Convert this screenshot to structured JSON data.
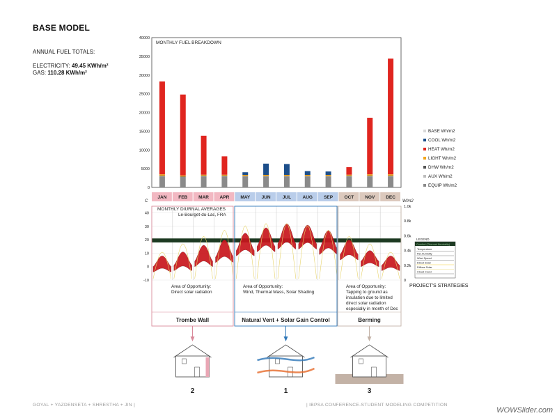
{
  "header": {
    "title": "BASE MODEL",
    "annual_label": "ANNUAL FUEL TOTALS:",
    "electricity_label": "ELECTRICITY:",
    "electricity_value": "49.45 KWh/m²",
    "gas_label": "GAS:",
    "gas_value": "110.28 KWh/m²"
  },
  "chart_data": [
    {
      "type": "bar",
      "title": "MONTHLY FUEL BREAKDOWN",
      "categories": [
        "JAN",
        "FEB",
        "MAR",
        "APR",
        "MAY",
        "JUN",
        "JUL",
        "AUG",
        "SEP",
        "OCT",
        "NOV",
        "DEC"
      ],
      "ylim": [
        0,
        40000
      ],
      "yticks": [
        0,
        5000,
        10000,
        15000,
        20000,
        25000,
        30000,
        35000,
        40000
      ],
      "stacked": true,
      "series": [
        {
          "name": "EQUIP Wh/m2",
          "color": "#8a8a8a",
          "values": [
            2800,
            2600,
            2800,
            2800,
            2800,
            2800,
            2800,
            2800,
            2800,
            2800,
            2800,
            2800
          ]
        },
        {
          "name": "AUX Wh/m2",
          "color": "#bdbdbd",
          "values": [
            100,
            100,
            100,
            100,
            100,
            100,
            100,
            100,
            100,
            100,
            100,
            100
          ]
        },
        {
          "name": "DHW Wh/m2",
          "color": "#555555",
          "values": [
            200,
            200,
            200,
            200,
            150,
            150,
            150,
            150,
            150,
            200,
            200,
            200
          ]
        },
        {
          "name": "LIGHT Wh/m2",
          "color": "#f2a51a",
          "values": [
            400,
            300,
            300,
            300,
            300,
            300,
            300,
            300,
            300,
            300,
            400,
            400
          ]
        },
        {
          "name": "COOL Wh/m2",
          "color": "#1c4e8a",
          "values": [
            0,
            0,
            0,
            0,
            700,
            3000,
            2900,
            1000,
            900,
            0,
            0,
            0
          ]
        },
        {
          "name": "HEAT Wh/m2",
          "color": "#e0251f",
          "values": [
            24800,
            21600,
            10400,
            4900,
            0,
            0,
            0,
            0,
            0,
            2000,
            15100,
            30900
          ]
        },
        {
          "name": "BASE Wh/m2",
          "color": "#d9d9d9",
          "values": [
            0,
            0,
            0,
            0,
            0,
            0,
            0,
            0,
            0,
            0,
            0,
            0
          ]
        }
      ],
      "legend_order": [
        "BASE Wh/m2",
        "COOL Wh/m2",
        "HEAT Wh/m2",
        "LIGHT Wh/m2",
        "DHW Wh/m2",
        "AUX Wh/m2",
        "EQUIP Wh/m2"
      ]
    },
    {
      "type": "area",
      "title": "MONTHLY DIURNAL AVERAGES",
      "subtitle": "Le-Bourget-du-Lac, FRA",
      "ylabel": "C",
      "ylabel_right": "W/m2",
      "ylim": [
        -10,
        45
      ],
      "yticks": [
        -10,
        -5,
        0,
        5,
        10,
        15,
        20,
        25,
        30,
        35,
        40
      ],
      "right_ticks": [
        "0",
        "0.2k",
        "0.4k",
        "0.6k",
        "0.8k",
        "1.0k"
      ],
      "months": [
        "JAN",
        "FEB",
        "MAR",
        "APR",
        "MAY",
        "JUN",
        "JUL",
        "AUG",
        "SEP",
        "OCT",
        "NOV",
        "DEC"
      ],
      "month_colors": [
        "#f2b8c2",
        "#f2b8c2",
        "#f2b8c2",
        "#f2b8c2",
        "#b9cdea",
        "#b9cdea",
        "#b9cdea",
        "#b9cdea",
        "#b9cdea",
        "#dcc9bd",
        "#dcc9bd",
        "#dcc9bd"
      ],
      "temp_min": [
        -2,
        -1,
        2,
        5,
        10,
        13,
        15,
        15,
        11,
        7,
        2,
        -1
      ],
      "temp_max": [
        6,
        9,
        14,
        18,
        23,
        27,
        30,
        29,
        25,
        18,
        10,
        6
      ],
      "comfort_band": [
        18,
        21
      ],
      "legend_title": "LEGEND",
      "legend_header": "Comfort (Thermal Neutrality)",
      "legend_items": [
        "Temperature",
        "Rel.Humidity",
        "Wind Speed",
        "Direct Solar",
        "Diffuse Solar",
        "Cloud Cover"
      ]
    }
  ],
  "strategies": {
    "title": "PROJECT'S STRATEGIES",
    "items": [
      {
        "opportunity": "Area of Opportunity:\nDirect solar radiation",
        "name": "Trombe Wall",
        "number": "2",
        "color": "#d9899a"
      },
      {
        "opportunity": "Area of Opportunity:\nWind, Thermal Mass, Solar Shading",
        "name": "Natural Vent + Solar Gain Control",
        "number": "1",
        "color": "#2f77b8"
      },
      {
        "opportunity": "Area of Opportunity:\nTapping to ground as\ninsulation due to limited\ndirect solar radiation\nespecially in month of Dec",
        "name": "Berming",
        "number": "3",
        "color": "#c4b3a8"
      }
    ]
  },
  "footer": {
    "left": "GOYAL + YAZDENSETA + SHRESTHA + JIN |",
    "right": "| IBPSA CONFERENCE-STUDENT MODELING COMPETITION"
  },
  "watermark": "WOWSlider.com"
}
